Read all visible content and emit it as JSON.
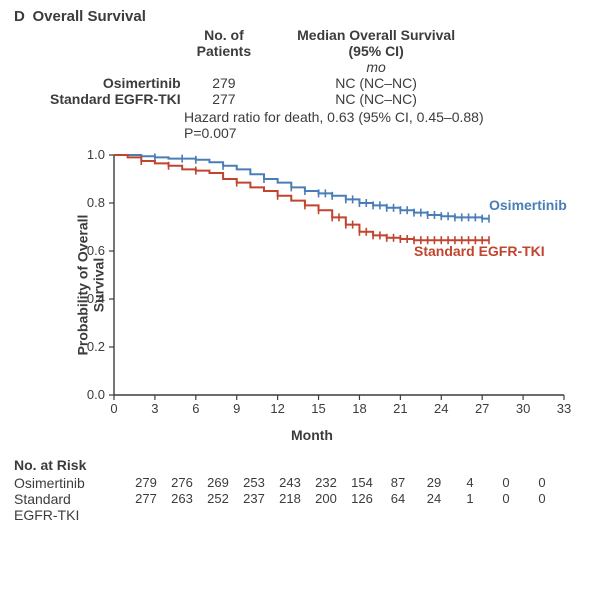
{
  "panel": {
    "letter": "D",
    "title": "Overall Survival"
  },
  "header": {
    "col_patients": "No. of\nPatients",
    "col_median": "Median Overall Survival\n(95% CI)",
    "unit": "mo",
    "rows": [
      {
        "name": "Osimertinib",
        "n": "279",
        "median": "NC (NC–NC)"
      },
      {
        "name": "Standard EGFR-TKI",
        "n": "277",
        "median": "NC (NC–NC)"
      }
    ]
  },
  "hazard": {
    "line1": "Hazard ratio for death, 0.63 (95% CI, 0.45–0.88)",
    "line2": "P=0.007"
  },
  "chart": {
    "type": "kaplan-meier",
    "xlabel": "Month",
    "ylabel": "Probability of Overall\nSurvival",
    "xlim": [
      0,
      33
    ],
    "ylim": [
      0,
      1.0
    ],
    "xtick_step": 3,
    "ytick_step": 0.2,
    "xticks": [
      0,
      3,
      6,
      9,
      12,
      15,
      18,
      21,
      24,
      27,
      30,
      33
    ],
    "yticks": [
      0.0,
      0.2,
      0.4,
      0.6,
      0.8,
      1.0
    ],
    "background_color": "#ffffff",
    "axis_color": "#3c3c3c",
    "tick_fontsize": 13,
    "label_fontsize": 14,
    "line_width": 2.0,
    "censor_mark": "tick",
    "series": [
      {
        "name": "Osimertinib",
        "color": "#4a7db8",
        "label_x": 27.5,
        "label_y": 0.77,
        "points": [
          [
            0,
            1.0
          ],
          [
            1,
            1.0
          ],
          [
            2,
            0.995
          ],
          [
            3,
            0.99
          ],
          [
            4,
            0.985
          ],
          [
            5,
            0.985
          ],
          [
            6,
            0.98
          ],
          [
            7,
            0.97
          ],
          [
            8,
            0.955
          ],
          [
            9,
            0.94
          ],
          [
            10,
            0.92
          ],
          [
            11,
            0.9
          ],
          [
            12,
            0.885
          ],
          [
            13,
            0.865
          ],
          [
            14,
            0.85
          ],
          [
            15,
            0.84
          ],
          [
            16,
            0.83
          ],
          [
            17,
            0.815
          ],
          [
            18,
            0.8
          ],
          [
            19,
            0.79
          ],
          [
            20,
            0.78
          ],
          [
            21,
            0.77
          ],
          [
            22,
            0.76
          ],
          [
            23,
            0.75
          ],
          [
            24,
            0.745
          ],
          [
            25,
            0.74
          ],
          [
            26,
            0.74
          ],
          [
            27,
            0.735
          ],
          [
            27.5,
            0.735
          ]
        ],
        "censor_x": [
          3,
          5,
          6,
          8,
          11,
          13,
          14,
          15,
          15.5,
          16,
          17,
          17.5,
          18,
          18.5,
          19,
          19.5,
          20,
          20.5,
          21,
          21.5,
          22,
          22.5,
          23,
          23.5,
          24,
          24.5,
          25,
          25.5,
          26,
          26.5,
          27,
          27.5
        ]
      },
      {
        "name": "Standard EGFR-TKI",
        "color": "#c1442e",
        "label_x": 22,
        "label_y": 0.58,
        "points": [
          [
            0,
            1.0
          ],
          [
            1,
            0.99
          ],
          [
            2,
            0.975
          ],
          [
            3,
            0.965
          ],
          [
            4,
            0.955
          ],
          [
            5,
            0.94
          ],
          [
            6,
            0.935
          ],
          [
            7,
            0.925
          ],
          [
            8,
            0.9
          ],
          [
            9,
            0.885
          ],
          [
            10,
            0.865
          ],
          [
            11,
            0.85
          ],
          [
            12,
            0.83
          ],
          [
            13,
            0.81
          ],
          [
            14,
            0.79
          ],
          [
            15,
            0.77
          ],
          [
            16,
            0.74
          ],
          [
            17,
            0.71
          ],
          [
            18,
            0.68
          ],
          [
            19,
            0.665
          ],
          [
            20,
            0.655
          ],
          [
            21,
            0.65
          ],
          [
            22,
            0.645
          ],
          [
            23,
            0.645
          ],
          [
            24,
            0.645
          ],
          [
            25,
            0.645
          ],
          [
            26,
            0.645
          ],
          [
            27,
            0.645
          ],
          [
            27.5,
            0.645
          ]
        ],
        "censor_x": [
          2,
          4,
          6,
          9,
          12,
          14,
          15,
          16,
          16.5,
          17,
          17.5,
          18,
          18.5,
          19,
          19.5,
          20,
          20.5,
          21,
          21.5,
          22,
          22.5,
          23,
          23.5,
          24,
          24.5,
          25,
          25.5,
          26,
          26.5,
          27,
          27.5
        ]
      }
    ]
  },
  "risk": {
    "title": "No. at Risk",
    "months": [
      0,
      3,
      6,
      9,
      12,
      15,
      18,
      21,
      24,
      27,
      30,
      33
    ],
    "rows": [
      {
        "name": "Osimertinib",
        "counts": [
          279,
          276,
          269,
          253,
          243,
          232,
          154,
          87,
          29,
          4,
          0,
          0
        ]
      },
      {
        "name": "Standard\nEGFR-TKI",
        "counts": [
          277,
          263,
          252,
          237,
          218,
          200,
          126,
          64,
          24,
          1,
          0,
          0
        ]
      }
    ]
  }
}
